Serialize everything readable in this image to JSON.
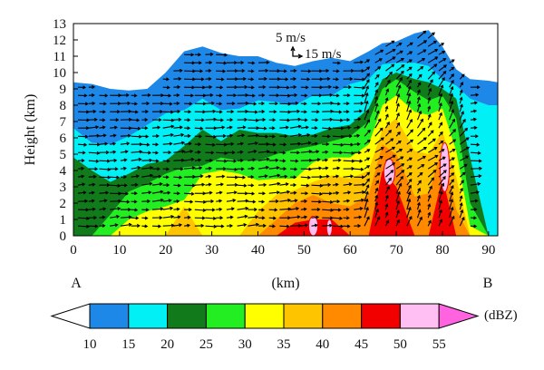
{
  "chart_data": {
    "type": "heatmap",
    "title": "",
    "xlabel": "(km)",
    "ylabel": "Height (km)",
    "xlim": [
      0,
      92
    ],
    "ylim": [
      0,
      13
    ],
    "x_ticks": [
      0,
      10,
      20,
      30,
      40,
      50,
      60,
      70,
      80,
      90
    ],
    "y_ticks": [
      0,
      1,
      2,
      3,
      4,
      5,
      6,
      7,
      8,
      9,
      10,
      11,
      12,
      13
    ],
    "endpoints": {
      "start": "A",
      "end": "B"
    },
    "vector_reference": {
      "label_a": "5 m/s",
      "label_b": "15 m/s"
    },
    "colorbar": {
      "unit": "(dBZ)",
      "levels": [
        10,
        15,
        20,
        25,
        30,
        35,
        40,
        45,
        50,
        55
      ],
      "colors": [
        "#ffffff",
        "#1e88e8",
        "#00f0f5",
        "#117a1a",
        "#22ee22",
        "#ffff00",
        "#ffc400",
        "#ff8a00",
        "#f20000",
        "#ffbff2",
        "#ff63e0"
      ]
    },
    "reflectivity_columns": [
      {
        "x": 0,
        "t10": 9.4,
        "t20": 6.6,
        "t25": 4.8,
        "t30": 0,
        "t35": 0,
        "t40": 0,
        "t45": 0,
        "t50": 0
      },
      {
        "x": 4,
        "t10": 9.3,
        "t20": 5.7,
        "t25": 4.0,
        "t30": 0,
        "t35": 0,
        "t40": 0,
        "t45": 0,
        "t50": 0
      },
      {
        "x": 8,
        "t10": 9.0,
        "t20": 5.6,
        "t25": 3.3,
        "t30": 1.3,
        "t35": 0,
        "t40": 0,
        "t45": 0,
        "t50": 0
      },
      {
        "x": 12,
        "t10": 8.9,
        "t20": 6.1,
        "t25": 3.8,
        "t30": 2.7,
        "t35": 1.0,
        "t40": 0,
        "t45": 0,
        "t50": 0
      },
      {
        "x": 16,
        "t10": 9.0,
        "t20": 6.8,
        "t25": 4.4,
        "t30": 3.2,
        "t35": 1.5,
        "t40": 0,
        "t45": 0,
        "t50": 0
      },
      {
        "x": 20,
        "t10": 10.0,
        "t20": 7.5,
        "t25": 4.6,
        "t30": 3.8,
        "t35": 1.8,
        "t40": 0,
        "t45": 0,
        "t50": 0
      },
      {
        "x": 24,
        "t10": 11.3,
        "t20": 7.7,
        "t25": 5.5,
        "t30": 4.2,
        "t35": 2.2,
        "t40": 1.8,
        "t45": 0,
        "t50": 0
      },
      {
        "x": 28,
        "t10": 11.6,
        "t20": 8.4,
        "t25": 6.5,
        "t30": 4.3,
        "t35": 3.8,
        "t40": 0,
        "t45": 0,
        "t50": 0
      },
      {
        "x": 32,
        "t10": 11.2,
        "t20": 7.7,
        "t25": 5.8,
        "t30": 4.8,
        "t35": 4.0,
        "t40": 0,
        "t45": 0,
        "t50": 0
      },
      {
        "x": 36,
        "t10": 11.0,
        "t20": 7.8,
        "t25": 6.5,
        "t30": 4.6,
        "t35": 3.8,
        "t40": 0,
        "t45": 0,
        "t50": 0
      },
      {
        "x": 40,
        "t10": 11.0,
        "t20": 8.3,
        "t25": 6.3,
        "t30": 4.6,
        "t35": 3.4,
        "t40": 1.5,
        "t45": 0,
        "t50": 0
      },
      {
        "x": 44,
        "t10": 10.6,
        "t20": 8.2,
        "t25": 6.3,
        "t30": 5.0,
        "t35": 3.5,
        "t40": 2.5,
        "t45": 1.0,
        "t50": 0
      },
      {
        "x": 48,
        "t10": 10.4,
        "t20": 8.0,
        "t25": 6.1,
        "t30": 5.3,
        "t35": 3.5,
        "t40": 2.8,
        "t45": 2.0,
        "t50": 0.8
      },
      {
        "x": 52,
        "t10": 10.7,
        "t20": 8.6,
        "t25": 6.2,
        "t30": 5.5,
        "t35": 4.5,
        "t40": 3.3,
        "t45": 2.5,
        "t50": 1.0
      },
      {
        "x": 56,
        "t10": 10.9,
        "t20": 8.6,
        "t25": 6.6,
        "t30": 5.8,
        "t35": 4.8,
        "t40": 3.7,
        "t45": 2.0,
        "t50": 1.0
      },
      {
        "x": 60,
        "t10": 10.7,
        "t20": 9.3,
        "t25": 6.8,
        "t30": 6.1,
        "t35": 4.8,
        "t40": 3.5,
        "t45": 1.8,
        "t50": 0
      },
      {
        "x": 64,
        "t10": 11.3,
        "t20": 9.6,
        "t25": 7.8,
        "t30": 7.0,
        "t35": 5.6,
        "t40": 4.0,
        "t45": 2.5,
        "t50": 0
      },
      {
        "x": 67,
        "t10": 11.8,
        "t20": 10.5,
        "t25": 9.6,
        "t30": 9.0,
        "t35": 8.0,
        "t40": 6.5,
        "t45": 5.6,
        "t50": 4.0
      },
      {
        "x": 70,
        "t10": 11.9,
        "t20": 10.6,
        "t25": 10.0,
        "t30": 9.6,
        "t35": 8.6,
        "t40": 7.2,
        "t45": 5.0,
        "t50": 3.0
      },
      {
        "x": 74,
        "t10": 12.4,
        "t20": 10.6,
        "t25": 9.6,
        "t30": 8.8,
        "t35": 7.6,
        "t40": 5.2,
        "t45": 2.4,
        "t50": 0
      },
      {
        "x": 77,
        "t10": 12.6,
        "t20": 10.4,
        "t25": 9.4,
        "t30": 8.3,
        "t35": 7.4,
        "t40": 5.0,
        "t45": 2.6,
        "t50": 0
      },
      {
        "x": 80,
        "t10": 11.6,
        "t20": 9.6,
        "t25": 9.0,
        "t30": 8.6,
        "t35": 7.8,
        "t40": 6.4,
        "t45": 5.4,
        "t50": 3.6
      },
      {
        "x": 83,
        "t10": 10.2,
        "t20": 9.2,
        "t25": 8.4,
        "t30": 7.2,
        "t35": 5.2,
        "t40": 3.6,
        "t45": 1.6,
        "t50": 0
      },
      {
        "x": 86,
        "t10": 9.6,
        "t20": 8.4,
        "t25": 4.8,
        "t30": 2.0,
        "t35": 0.6,
        "t40": 0,
        "t45": 0,
        "t50": 0
      },
      {
        "x": 90,
        "t10": 9.5,
        "t20": 8.0,
        "t25": 0,
        "t30": 0,
        "t35": 0,
        "t40": 0,
        "t45": 0,
        "t50": 0
      },
      {
        "x": 92,
        "t10": 9.4,
        "t20": 8.0,
        "t25": 0,
        "t30": 0,
        "t35": 0,
        "t40": 0,
        "t45": 0,
        "t50": 0
      }
    ],
    "reflectivity_cores": [
      {
        "x": 68.5,
        "y": 3.9,
        "rx": 1.2,
        "ry": 0.8,
        "level": 55
      },
      {
        "x": 80.5,
        "y": 4.2,
        "rx": 1.0,
        "ry": 1.5,
        "level": 55
      },
      {
        "x": 52.0,
        "y": 0.6,
        "rx": 1.0,
        "ry": 0.6,
        "level": 55
      },
      {
        "x": 55.5,
        "y": 0.5,
        "rx": 0.6,
        "ry": 0.5,
        "level": 55
      }
    ]
  }
}
